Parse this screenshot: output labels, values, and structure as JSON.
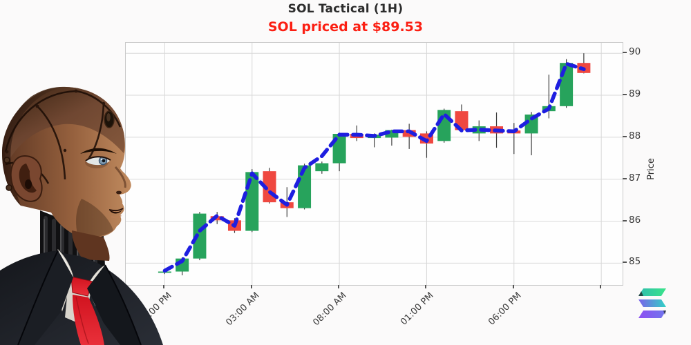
{
  "page": {
    "background": "#fbfafa"
  },
  "header": {
    "title": "SOL Tactical (1H)",
    "subtitle": "SOL priced at $89.53",
    "title_color": "#2d2d2d",
    "subtitle_color": "#fb1e12"
  },
  "figure": {
    "name": "android-analyst-portrait"
  },
  "logo": {
    "name": "solana-logo"
  },
  "chart_data": {
    "type": "candlestick",
    "title": "SOL Tactical (1H)",
    "ylabel": "Price",
    "ylim": [
      84.48,
      90.25
    ],
    "y_ticks": [
      90,
      89,
      88,
      87,
      86,
      85
    ],
    "x_tick_labels": [
      "10:00 PM",
      "03:00 AM",
      "08:00 AM",
      "01:00 PM",
      "06:00 PM",
      ""
    ],
    "x_tick_indices": [
      0,
      5,
      10,
      15,
      20,
      25
    ],
    "grid": true,
    "legend": "none",
    "colors": {
      "up": "#27a35c",
      "down": "#ef4840",
      "wick": "#3c3c3c",
      "ma_line": "#1e1ee0",
      "grid": "#d8d8d8"
    },
    "candles": [
      {
        "o": 84.8,
        "h": 84.87,
        "l": 84.74,
        "c": 84.8
      },
      {
        "o": 84.8,
        "h": 85.14,
        "l": 84.71,
        "c": 85.11
      },
      {
        "o": 85.11,
        "h": 86.22,
        "l": 85.07,
        "c": 86.18
      },
      {
        "o": 86.12,
        "h": 86.22,
        "l": 85.93,
        "c": 86.02
      },
      {
        "o": 86.02,
        "h": 86.07,
        "l": 85.72,
        "c": 85.77
      },
      {
        "o": 85.77,
        "h": 87.24,
        "l": 85.74,
        "c": 87.17
      },
      {
        "o": 87.19,
        "h": 87.27,
        "l": 86.42,
        "c": 86.45
      },
      {
        "o": 86.45,
        "h": 86.81,
        "l": 86.1,
        "c": 86.31
      },
      {
        "o": 86.31,
        "h": 87.37,
        "l": 86.28,
        "c": 87.33
      },
      {
        "o": 87.19,
        "h": 87.42,
        "l": 87.13,
        "c": 87.38
      },
      {
        "o": 87.38,
        "h": 88.11,
        "l": 87.19,
        "c": 88.08
      },
      {
        "o": 88.08,
        "h": 88.28,
        "l": 87.91,
        "c": 87.98
      },
      {
        "o": 87.98,
        "h": 88.09,
        "l": 87.76,
        "c": 88.06
      },
      {
        "o": 87.99,
        "h": 88.18,
        "l": 87.8,
        "c": 88.17
      },
      {
        "o": 88.17,
        "h": 88.32,
        "l": 87.72,
        "c": 88.01
      },
      {
        "o": 88.09,
        "h": 88.14,
        "l": 87.51,
        "c": 87.85
      },
      {
        "o": 87.91,
        "h": 88.68,
        "l": 87.87,
        "c": 88.65
      },
      {
        "o": 88.62,
        "h": 88.78,
        "l": 88.13,
        "c": 88.17
      },
      {
        "o": 88.09,
        "h": 88.4,
        "l": 87.91,
        "c": 88.26
      },
      {
        "o": 88.26,
        "h": 88.59,
        "l": 87.75,
        "c": 88.09
      },
      {
        "o": 88.16,
        "h": 88.34,
        "l": 87.6,
        "c": 88.09
      },
      {
        "o": 88.09,
        "h": 88.6,
        "l": 87.57,
        "c": 88.54
      },
      {
        "o": 88.62,
        "h": 89.49,
        "l": 88.45,
        "c": 88.74
      },
      {
        "o": 88.74,
        "h": 89.86,
        "l": 88.7,
        "c": 89.77
      },
      {
        "o": 89.77,
        "h": 90.0,
        "l": 89.52,
        "c": 89.53
      }
    ],
    "ma_line": {
      "style": "dashed",
      "values": [
        84.82,
        85.05,
        85.77,
        86.13,
        85.89,
        87.14,
        86.7,
        86.39,
        87.27,
        87.55,
        88.06,
        88.06,
        88.03,
        88.14,
        88.14,
        87.91,
        88.55,
        88.16,
        88.18,
        88.16,
        88.14,
        88.44,
        88.68,
        89.75,
        89.62
      ]
    }
  }
}
